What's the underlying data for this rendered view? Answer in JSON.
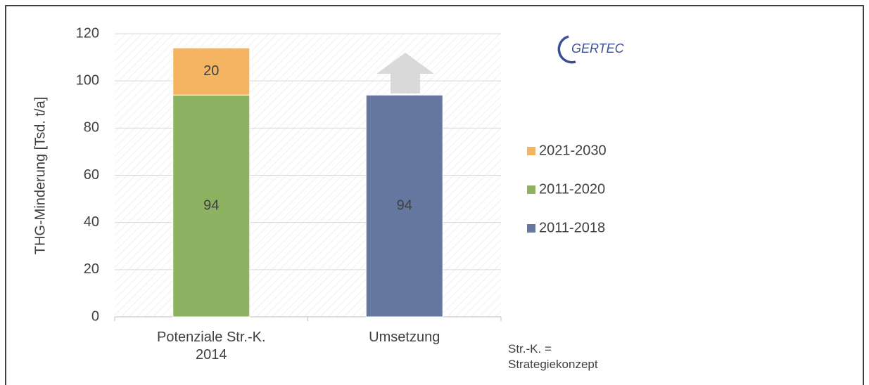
{
  "chart_data": {
    "type": "bar",
    "stacked": true,
    "ylabel": "THG-Minderung [Tsd. t/a]",
    "categories": [
      "Potenziale Str.-K. 2014",
      "Umsetzung"
    ],
    "series": [
      {
        "name": "2011-2018",
        "color": "#65779f",
        "values": [
          null,
          94
        ]
      },
      {
        "name": "2011-2020",
        "color": "#8db262",
        "values": [
          94,
          null
        ]
      },
      {
        "name": "2021-2030",
        "color": "#f4b461",
        "values": [
          20,
          null
        ]
      }
    ],
    "ylim": [
      0,
      120
    ],
    "yticks": [
      0,
      20,
      40,
      60,
      80,
      100,
      120
    ],
    "grid": true,
    "annotation": "Str.-K. = Strategiekonzept",
    "logo": "GERTEC"
  }
}
